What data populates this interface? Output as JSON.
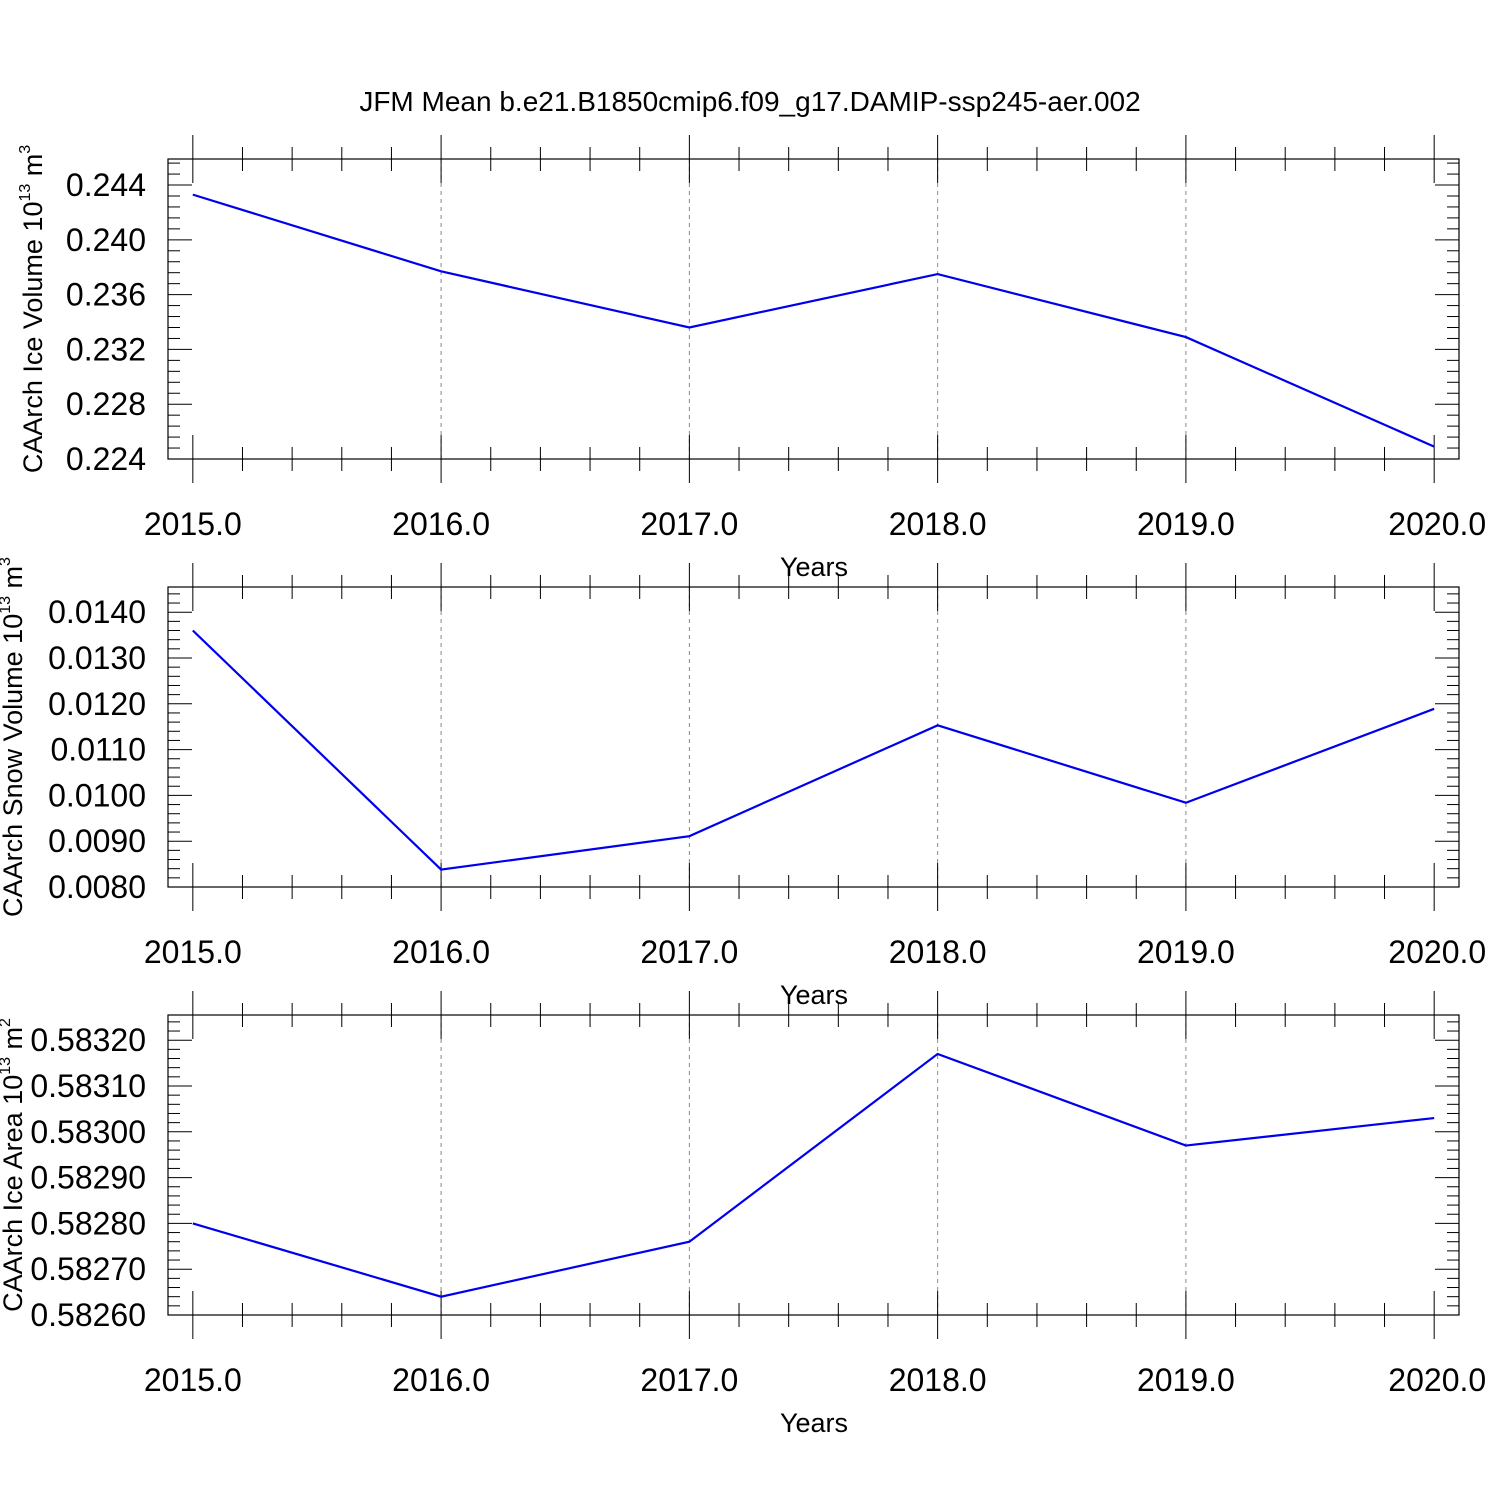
{
  "figure": {
    "title": "JFM Mean b.e21.B1850cmip6.f09_g17.DAMIP-ssp245-aer.002"
  },
  "chart_data": [
    {
      "type": "line",
      "title": "JFM Mean b.e21.B1850cmip6.f09_g17.DAMIP-ssp245-aer.002",
      "xlabel": "Years",
      "ylabel": "CAArch Ice Volume 10",
      "ylabel_exp": "13",
      "ylabel_unit": " m",
      "ylabel_unit_exp": "3",
      "x": [
        2015,
        2016,
        2017,
        2018,
        2019,
        2020
      ],
      "xlim": [
        2014.9,
        2020.1
      ],
      "xticks": [
        2015,
        2016,
        2017,
        2018,
        2019,
        2020
      ],
      "xtick_labels": [
        "2015.0",
        "2016.0",
        "2017.0",
        "2018.0",
        "2019.0",
        "2020.0"
      ],
      "ylim": [
        0.224,
        0.2459
      ],
      "yticks": [
        0.224,
        0.228,
        0.232,
        0.236,
        0.24,
        0.244
      ],
      "ytick_labels": [
        "0.224",
        "0.228",
        "0.232",
        "0.236",
        "0.240",
        "0.244"
      ],
      "yminor_step": 0.0008,
      "grid": "vertical dashed at major x ticks",
      "series": [
        {
          "name": "CAArch Ice Volume",
          "color": "#0000ee",
          "values": [
            0.2433,
            0.2377,
            0.2336,
            0.2375,
            0.2329,
            0.2249
          ]
        }
      ]
    },
    {
      "type": "line",
      "xlabel": "Years",
      "ylabel": "CAArch Snow Volume 10",
      "ylabel_exp": "13",
      "ylabel_unit": " m",
      "ylabel_unit_exp": "3",
      "x": [
        2015,
        2016,
        2017,
        2018,
        2019,
        2020
      ],
      "xlim": [
        2014.9,
        2020.1
      ],
      "xticks": [
        2015,
        2016,
        2017,
        2018,
        2019,
        2020
      ],
      "xtick_labels": [
        "2015.0",
        "2016.0",
        "2017.0",
        "2018.0",
        "2019.0",
        "2020.0"
      ],
      "ylim": [
        0.008,
        0.01455
      ],
      "yticks": [
        0.008,
        0.009,
        0.01,
        0.011,
        0.012,
        0.013,
        0.014
      ],
      "ytick_labels": [
        "0.0080",
        "0.0090",
        "0.0100",
        "0.0110",
        "0.0120",
        "0.0130",
        "0.0140"
      ],
      "yminor_step": 0.0002,
      "grid": "vertical dashed at major x ticks",
      "series": [
        {
          "name": "CAArch Snow Volume",
          "color": "#0000ee",
          "values": [
            0.0136,
            0.00838,
            0.00911,
            0.01153,
            0.00984,
            0.01189
          ]
        }
      ]
    },
    {
      "type": "line",
      "xlabel": "Years",
      "ylabel": "CAArch Ice Area 10",
      "ylabel_exp": "13",
      "ylabel_unit": " m",
      "ylabel_unit_exp": "2",
      "x": [
        2015,
        2016,
        2017,
        2018,
        2019,
        2020
      ],
      "xlim": [
        2014.9,
        2020.1
      ],
      "xticks": [
        2015,
        2016,
        2017,
        2018,
        2019,
        2020
      ],
      "xtick_labels": [
        "2015.0",
        "2016.0",
        "2017.0",
        "2018.0",
        "2019.0",
        "2020.0"
      ],
      "ylim": [
        0.5826,
        0.583255
      ],
      "yticks": [
        0.5826,
        0.5827,
        0.5828,
        0.5829,
        0.583,
        0.5831,
        0.5832
      ],
      "ytick_labels": [
        "0.58260",
        "0.58270",
        "0.58280",
        "0.58290",
        "0.58300",
        "0.58310",
        "0.58320"
      ],
      "yminor_step": 2e-05,
      "grid": "vertical dashed at major x ticks",
      "series": [
        {
          "name": "CAArch Ice Area",
          "color": "#0000ee",
          "values": [
            0.5828,
            0.58264,
            0.58276,
            0.58317,
            0.58297,
            0.58303
          ]
        }
      ]
    }
  ]
}
